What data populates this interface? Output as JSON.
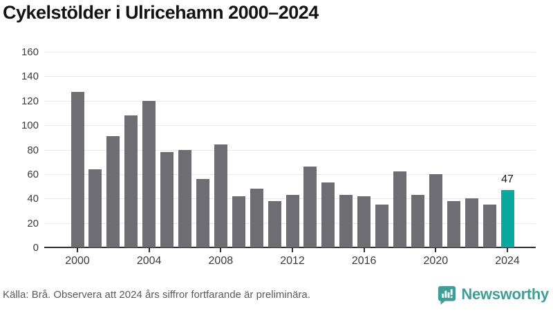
{
  "title": "Cykelstölder i Ulricehamn 2000–2024",
  "footer": {
    "source": "Källa: Brå. Observera att 2024 års siffror fortfarande är preliminära.",
    "brand": "Newsworthy"
  },
  "colors": {
    "bar": "#6e6d73",
    "highlight": "#0aa89d",
    "grid": "#e8e8e8",
    "axis": "#2e2e2e",
    "tick": "#2e2e2e",
    "brand_teal": "#3f9e98",
    "title_text": "#131313",
    "footer_text": "#5a5a5a"
  },
  "chart_data": {
    "type": "bar",
    "title": "Cykelstölder i Ulricehamn 2000–2024",
    "xlabel": "",
    "ylabel": "",
    "categories": [
      2000,
      2001,
      2002,
      2003,
      2004,
      2005,
      2006,
      2007,
      2008,
      2009,
      2010,
      2011,
      2012,
      2013,
      2014,
      2015,
      2016,
      2017,
      2018,
      2019,
      2020,
      2021,
      2022,
      2023,
      2024
    ],
    "values": [
      127,
      64,
      91,
      108,
      120,
      78,
      80,
      56,
      84,
      42,
      48,
      38,
      43,
      66,
      53,
      43,
      42,
      35,
      62,
      43,
      60,
      38,
      40,
      35,
      47
    ],
    "highlight_index": 24,
    "value_labels": [
      {
        "index": 24,
        "text": "47"
      }
    ],
    "ylim": [
      0,
      160
    ],
    "y_ticks": [
      0,
      20,
      40,
      60,
      80,
      100,
      120,
      140,
      160
    ],
    "x_tick_years": [
      2000,
      2004,
      2008,
      2012,
      2016,
      2020,
      2024
    ],
    "grid": true,
    "legend": "none"
  }
}
